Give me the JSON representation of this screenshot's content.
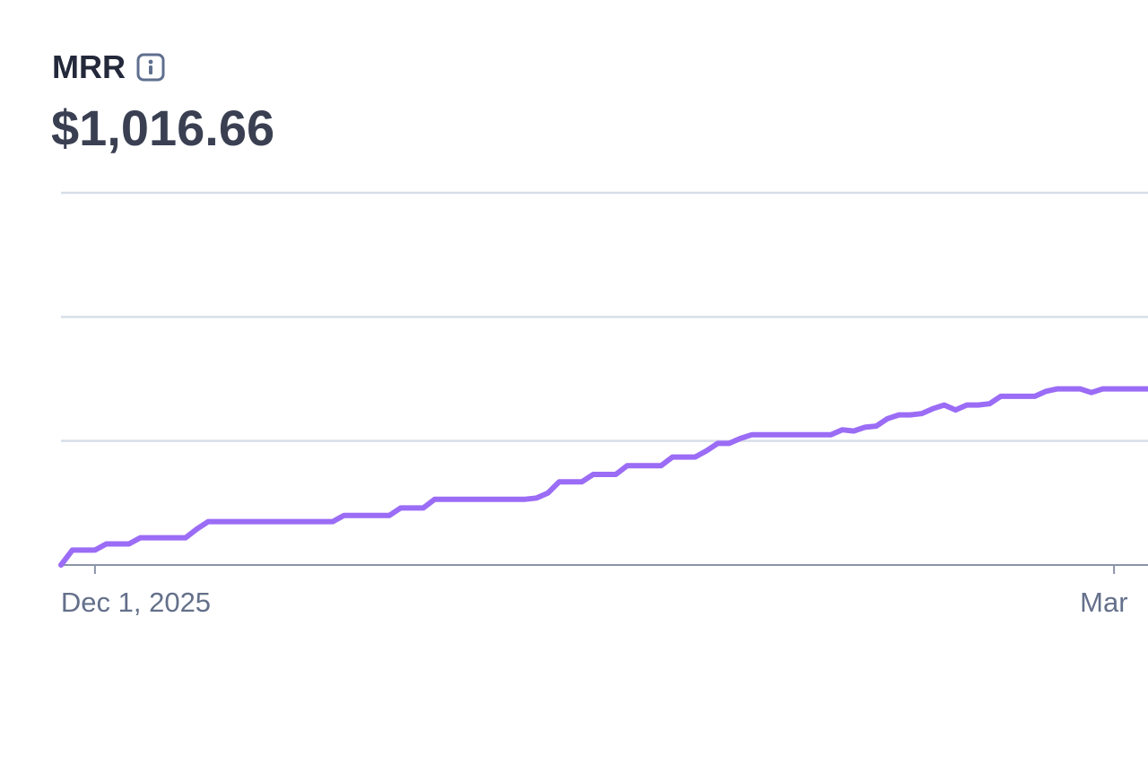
{
  "header": {
    "title": "MRR",
    "value": "$1,016.66"
  },
  "chart_data": {
    "type": "line",
    "categories": [
      null,
      null,
      null,
      "Dec 1, 2025",
      null,
      null,
      null,
      null,
      null,
      null,
      null,
      null,
      null,
      null,
      null,
      null,
      null,
      null,
      null,
      null,
      null,
      null,
      null,
      null,
      null,
      null,
      null,
      null,
      null,
      null,
      null,
      null,
      null,
      null,
      null,
      null,
      null,
      null,
      null,
      null,
      null,
      null,
      null,
      null,
      null,
      null,
      null,
      null,
      null,
      null,
      null,
      null,
      null,
      null,
      null,
      null,
      null,
      null,
      null,
      null,
      null,
      null,
      null,
      null,
      null,
      null,
      null,
      null,
      null,
      null,
      null,
      null,
      null,
      null,
      null,
      null,
      null,
      null,
      null,
      null,
      null,
      null,
      null,
      null,
      null,
      null,
      null,
      null,
      null,
      null,
      null,
      null,
      null,
      "Mar",
      null,
      null,
      null
    ],
    "series": [
      {
        "color": "#9b6cf5",
        "values": [
          0,
          0.12,
          0.12,
          0.12,
          0.17,
          0.17,
          0.17,
          0.22,
          0.22,
          0.22,
          0.22,
          0.22,
          0.29,
          0.35,
          0.35,
          0.35,
          0.35,
          0.35,
          0.35,
          0.35,
          0.35,
          0.35,
          0.35,
          0.35,
          0.35,
          0.4,
          0.4,
          0.4,
          0.4,
          0.4,
          0.46,
          0.46,
          0.46,
          0.53,
          0.53,
          0.53,
          0.53,
          0.53,
          0.53,
          0.53,
          0.53,
          0.53,
          0.54,
          0.58,
          0.67,
          0.67,
          0.67,
          0.73,
          0.73,
          0.73,
          0.8,
          0.8,
          0.8,
          0.8,
          0.87,
          0.87,
          0.87,
          0.92,
          0.98,
          0.98,
          1.02,
          1.05,
          1.05,
          1.05,
          1.05,
          1.05,
          1.05,
          1.05,
          1.05,
          1.09,
          1.08,
          1.11,
          1.12,
          1.18,
          1.21,
          1.21,
          1.22,
          1.26,
          1.29,
          1.25,
          1.29,
          1.29,
          1.3,
          1.36,
          1.36,
          1.36,
          1.36,
          1.4,
          1.42,
          1.42,
          1.42,
          1.39,
          1.42,
          1.42,
          1.42,
          1.42,
          1.42
        ]
      }
    ],
    "ylim": [
      0,
      3
    ],
    "yticks": [
      0,
      1,
      2,
      3
    ],
    "grid": true
  }
}
